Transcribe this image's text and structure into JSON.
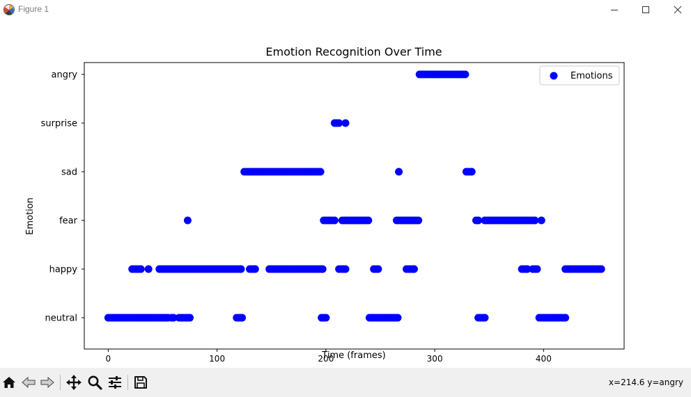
{
  "window": {
    "title": "Figure 1",
    "icons": [
      "matplotlib-logo-icon",
      "minimize-icon",
      "maximize-icon",
      "close-icon"
    ]
  },
  "toolbar": {
    "icons": [
      "home-icon",
      "back-arrow-icon",
      "forward-arrow-icon",
      "pan-icon",
      "zoom-icon",
      "subplots-icon",
      "save-icon"
    ],
    "coords": "x=214.6 y=angry"
  },
  "colors": {
    "marker": "#0000ff",
    "axes": "#000000",
    "toolbar_bg": "#f0f0f0"
  },
  "chart_data": {
    "type": "scatter",
    "title": "Emotion Recognition Over Time",
    "xlabel": "Time (frames)",
    "ylabel": "Emotion",
    "xlim": [
      -22,
      474
    ],
    "x_ticks": [
      0,
      100,
      200,
      300,
      400
    ],
    "categories": [
      "neutral",
      "happy",
      "fear",
      "sad",
      "surprise",
      "angry"
    ],
    "legend": {
      "label": "Emotions",
      "position": "top-right"
    },
    "grid": false,
    "series": [
      {
        "name": "Emotions",
        "points": [
          {
            "emotion": "neutral",
            "ranges": [
              [
                0,
                55
              ],
              [
                58,
                60
              ],
              [
                65,
                75
              ],
              [
                118,
                123
              ],
              [
                196,
                200
              ],
              [
                240,
                266
              ],
              [
                340,
                346
              ],
              [
                396,
                420
              ]
            ]
          },
          {
            "emotion": "happy",
            "ranges": [
              [
                22,
                30
              ],
              [
                37,
                37
              ],
              [
                47,
                122
              ],
              [
                130,
                135
              ],
              [
                148,
                197
              ],
              [
                212,
                218
              ],
              [
                244,
                248
              ],
              [
                274,
                281
              ],
              [
                380,
                385
              ],
              [
                390,
                394
              ],
              [
                420,
                453
              ]
            ]
          },
          {
            "emotion": "fear",
            "ranges": [
              [
                73,
                73
              ],
              [
                198,
                208
              ],
              [
                215,
                239
              ],
              [
                265,
                285
              ],
              [
                338,
                340
              ],
              [
                346,
                392
              ],
              [
                398,
                398
              ]
            ]
          },
          {
            "emotion": "sad",
            "ranges": [
              [
                125,
                195
              ],
              [
                267,
                267
              ],
              [
                329,
                334
              ]
            ]
          },
          {
            "emotion": "surprise",
            "ranges": [
              [
                208,
                212
              ],
              [
                218,
                218
              ]
            ]
          },
          {
            "emotion": "angry",
            "ranges": [
              [
                286,
                328
              ]
            ]
          }
        ]
      }
    ]
  }
}
